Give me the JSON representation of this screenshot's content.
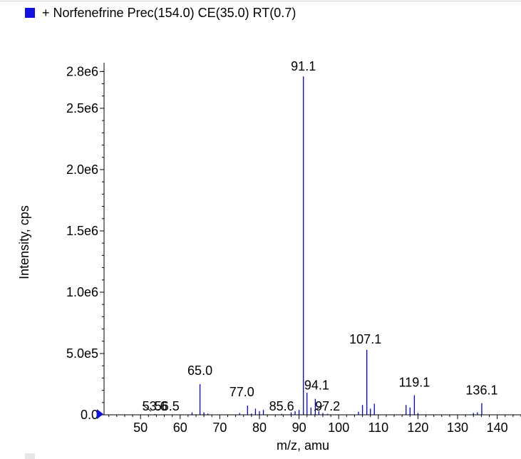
{
  "legend": {
    "label": "+ Norfenefrine Prec(154.0) CE(35.0) RT(0.7)",
    "marker_color": "#1010e0"
  },
  "colors": {
    "series": "#0000dd",
    "axis": "#000000",
    "pointer": "#1010e0"
  },
  "chart_data": {
    "type": "bar",
    "title": "",
    "xlabel": "m/z, amu",
    "ylabel": "Intensity, cps",
    "xlim": [
      40.8,
      146.0
    ],
    "ylim": [
      0,
      2860000
    ],
    "x_ticks": [
      50,
      60,
      70,
      80,
      90,
      100,
      110,
      120,
      130,
      140
    ],
    "x_tick_labels": [
      "50",
      "60",
      "70",
      "80",
      "90",
      "100",
      "110",
      "120",
      "130",
      "140"
    ],
    "y_ticks": [
      0,
      500000,
      1000000,
      1500000,
      2000000,
      2500000,
      2800000
    ],
    "y_tick_labels": [
      "0.0",
      "5.0e5",
      "1.0e6",
      "1.5e6",
      "2.0e6",
      "2.5e6",
      "2.8e6"
    ],
    "grid": false,
    "series": [
      {
        "x": [
          53.6,
          56.5,
          63.0,
          65.0,
          66.0,
          67.0,
          75.0,
          77.0,
          78.0,
          79.0,
          80.0,
          81.0,
          85.6,
          88.0,
          89.0,
          90.0,
          91.1,
          92.0,
          93.0,
          94.1,
          95.0,
          96.0,
          97.2,
          105.0,
          106.0,
          107.1,
          108.0,
          109.0,
          117.0,
          118.0,
          119.1,
          120.0,
          134.0,
          135.0,
          136.1
        ],
        "values": [
          6000,
          4000,
          20000,
          250000,
          20000,
          10000,
          15000,
          75000,
          10000,
          50000,
          30000,
          40000,
          8000,
          20000,
          30000,
          40000,
          2760000,
          180000,
          60000,
          130000,
          30000,
          15000,
          8000,
          25000,
          80000,
          530000,
          50000,
          90000,
          80000,
          60000,
          160000,
          15000,
          15000,
          20000,
          95000
        ]
      }
    ],
    "annotations": [
      {
        "text": "53.6",
        "x": 53.6
      },
      {
        "text": "56.5",
        "x": 56.5
      },
      {
        "text": "65.0",
        "x": 65.0
      },
      {
        "text": "77.0",
        "x": 77.0
      },
      {
        "text": "85.6",
        "x": 85.6
      },
      {
        "text": "91.1",
        "x": 91.1
      },
      {
        "text": "94.1",
        "x": 94.1
      },
      {
        "text": "97.2",
        "x": 97.2
      },
      {
        "text": "107.1",
        "x": 107.1
      },
      {
        "text": "119.1",
        "x": 119.1
      },
      {
        "text": "136.1",
        "x": 136.1
      }
    ]
  }
}
